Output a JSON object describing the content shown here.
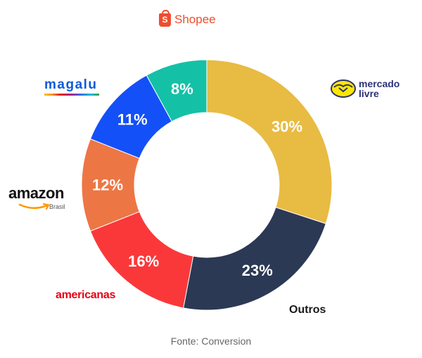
{
  "chart_data": {
    "type": "pie",
    "style": "donut",
    "slices": [
      {
        "label": "Mercado Livre",
        "value": 30,
        "display": "30%",
        "color": "#e8bb43"
      },
      {
        "label": "Outros",
        "value": 23,
        "display": "23%",
        "color": "#2b3955"
      },
      {
        "label": "Americanas",
        "value": 16,
        "display": "16%",
        "color": "#fa383a"
      },
      {
        "label": "Amazon",
        "value": 12,
        "display": "12%",
        "color": "#ed7645"
      },
      {
        "label": "Magalu",
        "value": 11,
        "display": "11%",
        "color": "#1450f8"
      },
      {
        "label": "Shopee",
        "value": 8,
        "display": "8%",
        "color": "#14c1a6"
      }
    ],
    "source": "Fonte: Conversion"
  },
  "labels": {
    "shopee": "Shopee",
    "shopee_glyph": "S",
    "magalu": "magalu",
    "amazon": "amazon",
    "amazon_sub": "Brasil",
    "americanas": "americanas",
    "mercado_line1": "mercado",
    "mercado_line2": "livre",
    "outros": "Outros"
  }
}
